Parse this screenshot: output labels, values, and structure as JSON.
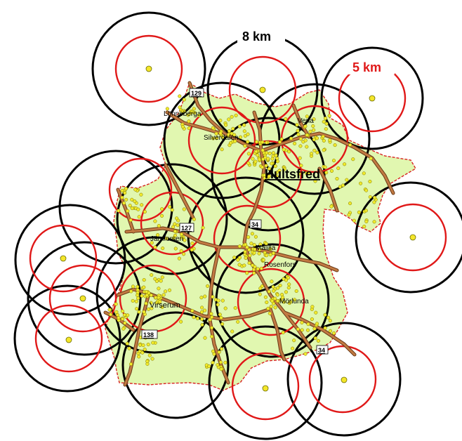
{
  "legend": {
    "outer_radius_label": "8 km",
    "inner_radius_label": "5 km"
  },
  "places": {
    "hultsfred": "Hultsfred",
    "lonneberga": "Lönneberga",
    "silverdalen": "Silverdalen",
    "vena": "Vena",
    "jarnforsen": "Järnforsen",
    "malilla": "Målilla",
    "rosenfors": "Rosenfors",
    "virserum": "Virserum",
    "morlunda": "Mörlunda"
  },
  "roads": {
    "r129": "129",
    "r127": "127",
    "r34a": "34",
    "r138": "138",
    "r34b": "34"
  },
  "colors": {
    "region_fill": "#e1f7b0",
    "region_border": "#d82222",
    "ring_5km": "#e01818",
    "ring_8km": "#000000",
    "road": "#b5703a",
    "road_edge": "#6a3a18",
    "point": "#f1ea2c",
    "station": "#f4e62a"
  }
}
